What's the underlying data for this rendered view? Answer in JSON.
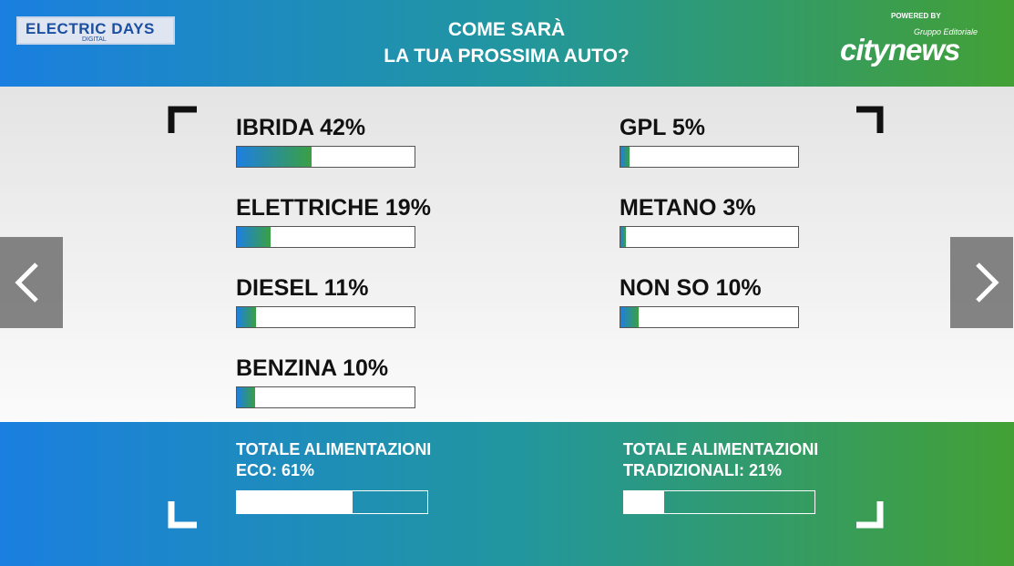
{
  "header": {
    "logo": {
      "title": "ELECTRIC DAYS",
      "subtitle": "DIGITAL"
    },
    "title": [
      "COME SARÀ",
      "LA TUA PROSSIMA AUTO?"
    ],
    "sponsor": {
      "powered_by": "POWERED BY",
      "group": "Gruppo Editoriale",
      "brand": "citynews"
    }
  },
  "results": {
    "left": [
      {
        "label": "IBRIDA 42%",
        "value": 42
      },
      {
        "label": "ELETTRICHE 19%",
        "value": 19
      },
      {
        "label": "DIESEL 11%",
        "value": 11
      },
      {
        "label": "BENZINA 10%",
        "value": 10
      }
    ],
    "right": [
      {
        "label": "GPL 5%",
        "value": 5
      },
      {
        "label": "METANO 3%",
        "value": 3
      },
      {
        "label": "NON SO 10%",
        "value": 10
      }
    ]
  },
  "totals": [
    {
      "lines": [
        "TOTALE ALIMENTAZIONI",
        "ECO: 61%"
      ],
      "value": 61
    },
    {
      "lines": [
        "TOTALE ALIMENTAZIONI",
        "TRADIZIONALI: 21%"
      ],
      "value": 21
    }
  ]
}
